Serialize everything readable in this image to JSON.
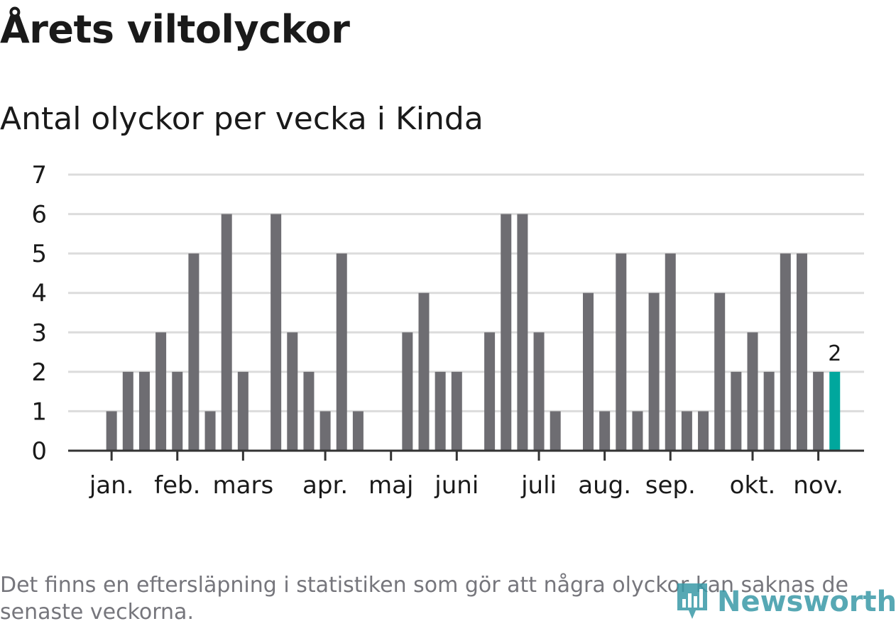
{
  "header": {
    "title": "Årets viltolyckor",
    "subtitle": "Antal olyckor per vecka i Kinda"
  },
  "footer": {
    "note": "Det finns en eftersläpning i statistiken som gör att några olyckor kan saknas de senaste veckorna.",
    "logo_text": "Newsworthy"
  },
  "colors": {
    "bar": "#6e6d72",
    "highlight": "#00a79d",
    "grid": "#dcdcdc",
    "axis": "#333333",
    "text": "#1a1a1a"
  },
  "chart_data": {
    "type": "bar",
    "title": "Antal olyckor per vecka i Kinda",
    "xlabel": "",
    "ylabel": "",
    "ylim": [
      0,
      7
    ],
    "yticks": [
      0,
      1,
      2,
      3,
      4,
      5,
      6,
      7
    ],
    "weeks": [
      1,
      2,
      3,
      4,
      5,
      6,
      7,
      8,
      9,
      10,
      11,
      12,
      13,
      14,
      15,
      16,
      17,
      18,
      19,
      20,
      21,
      22,
      23,
      24,
      25,
      26,
      27,
      28,
      29,
      30,
      31,
      32,
      33,
      34,
      35,
      36,
      37,
      38,
      39,
      40,
      41,
      42,
      43,
      44,
      45,
      46
    ],
    "values": [
      0,
      1,
      2,
      2,
      3,
      2,
      5,
      1,
      6,
      2,
      0,
      6,
      3,
      2,
      1,
      5,
      1,
      0,
      0,
      3,
      4,
      2,
      2,
      0,
      3,
      6,
      6,
      3,
      1,
      0,
      4,
      1,
      5,
      1,
      4,
      5,
      1,
      1,
      4,
      2,
      3,
      2,
      5,
      5,
      2,
      2
    ],
    "highlight_index": 45,
    "highlight_label": "2",
    "month_labels": [
      {
        "label": "jan.",
        "week": 2
      },
      {
        "label": "feb.",
        "week": 6
      },
      {
        "label": "mars",
        "week": 10
      },
      {
        "label": "apr.",
        "week": 15
      },
      {
        "label": "maj",
        "week": 19
      },
      {
        "label": "juni",
        "week": 23
      },
      {
        "label": "juli",
        "week": 28
      },
      {
        "label": "aug.",
        "week": 32
      },
      {
        "label": "sep.",
        "week": 36
      },
      {
        "label": "okt.",
        "week": 41
      },
      {
        "label": "nov.",
        "week": 45
      }
    ]
  }
}
